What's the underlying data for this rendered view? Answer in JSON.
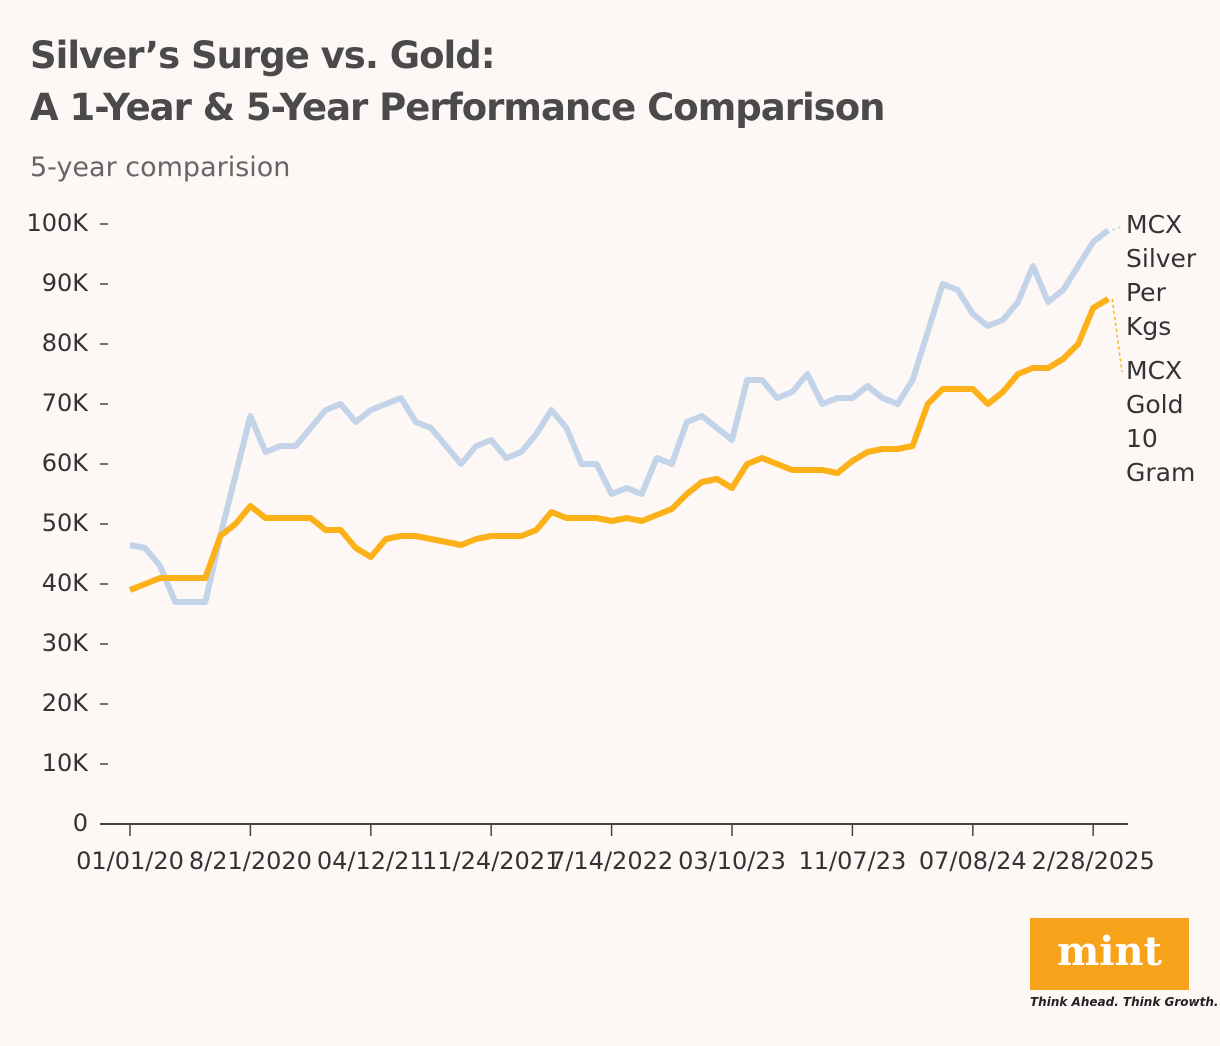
{
  "chart_data": {
    "type": "line",
    "title": "Silver’s Surge vs. Gold:\nA 1-Year & 5-Year Performance Comparison",
    "subtitle": "5-year comparision",
    "categories": [
      "01/01/20",
      null,
      null,
      null,
      null,
      null,
      null,
      null,
      "8/21/2020",
      null,
      null,
      null,
      null,
      null,
      null,
      null,
      "04/12/21",
      null,
      null,
      null,
      null,
      null,
      null,
      null,
      "11/24/2021",
      null,
      null,
      null,
      null,
      null,
      null,
      null,
      "7/14/2022",
      null,
      null,
      null,
      null,
      null,
      null,
      null,
      "03/10/23",
      null,
      null,
      null,
      null,
      null,
      null,
      null,
      "11/07/23",
      null,
      null,
      null,
      null,
      null,
      null,
      null,
      "07/08/24",
      null,
      null,
      null,
      null,
      null,
      null,
      null,
      "2/28/2025",
      null
    ],
    "series": [
      {
        "name": "MCX Silver Per Kgs",
        "color": "#c3d4e9",
        "values": [
          46500,
          46000,
          43000,
          37000,
          37000,
          37000,
          48000,
          58000,
          68000,
          62000,
          63000,
          63000,
          66000,
          69000,
          70000,
          67000,
          69000,
          70000,
          71000,
          67000,
          66000,
          63000,
          60000,
          63000,
          64000,
          61000,
          62000,
          65000,
          69000,
          66000,
          60000,
          60000,
          55000,
          56000,
          55000,
          61000,
          60000,
          67000,
          68000,
          66000,
          64000,
          74000,
          74000,
          71000,
          72000,
          75000,
          70000,
          71000,
          71000,
          73000,
          71000,
          70000,
          74000,
          82000,
          90000,
          89000,
          85000,
          83000,
          84000,
          87000,
          93000,
          87000,
          89000,
          93000,
          97000,
          99000
        ]
      },
      {
        "name": "MCX Gold 10 Gram",
        "color": "#fbb117",
        "values": [
          39000,
          40000,
          41000,
          41000,
          41000,
          41000,
          48000,
          50000,
          53000,
          51000,
          51000,
          51000,
          51000,
          49000,
          49000,
          46000,
          44500,
          47500,
          48000,
          48000,
          47500,
          47000,
          46500,
          47500,
          48000,
          48000,
          48000,
          49000,
          52000,
          51000,
          51000,
          51000,
          50500,
          51000,
          50500,
          51500,
          52500,
          55000,
          57000,
          57500,
          56000,
          60000,
          61000,
          60000,
          59000,
          59000,
          59000,
          58500,
          60500,
          62000,
          62500,
          62500,
          63000,
          70000,
          72500,
          72500,
          72500,
          70000,
          72000,
          75000,
          76000,
          76000,
          77500,
          80000,
          86000,
          87500
        ]
      }
    ],
    "ylim": [
      0,
      100000
    ],
    "yticks": [
      0,
      {
        "value": 10000,
        "label": "10K"
      },
      {
        "value": 20000,
        "label": "20K"
      },
      {
        "value": 30000,
        "label": "30K"
      },
      {
        "value": 40000,
        "label": "40K"
      },
      {
        "value": 50000,
        "label": "50K"
      },
      {
        "value": 60000,
        "label": "60K"
      },
      {
        "value": 70000,
        "label": "70K"
      },
      {
        "value": 80000,
        "label": "80K"
      },
      {
        "value": 90000,
        "label": "90K"
      },
      {
        "value": 100000,
        "label": "100K"
      }
    ],
    "grid": false
  },
  "branding": {
    "logo": "mint",
    "tagline": "Think Ahead. Think Growth."
  }
}
